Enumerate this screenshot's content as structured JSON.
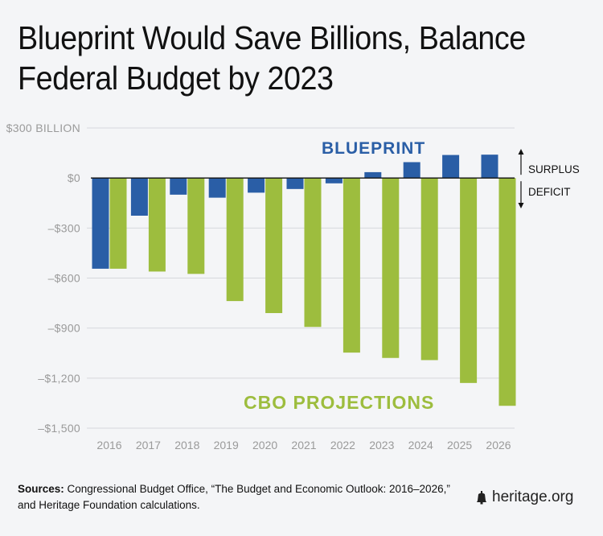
{
  "title_lines": [
    "Blueprint Would Save Billions, Balance",
    "Federal Budget by 2023"
  ],
  "colors": {
    "blueprint": "#2a5ea6",
    "cbo": "#9dbd3e",
    "axis_text": "#9a9a9a",
    "grid": "#d6d8dc",
    "zero": "#111111"
  },
  "chart_data": {
    "type": "bar",
    "categories": [
      "2016",
      "2017",
      "2018",
      "2019",
      "2020",
      "2021",
      "2022",
      "2023",
      "2024",
      "2025",
      "2026"
    ],
    "series": [
      {
        "name": "BLUEPRINT",
        "values": [
          -544,
          -226,
          -100,
          -118,
          -88,
          -66,
          -32,
          35,
          95,
          138,
          140
        ]
      },
      {
        "name": "CBO PROJECTIONS",
        "values": [
          -544,
          -561,
          -575,
          -738,
          -810,
          -893,
          -1047,
          -1079,
          -1092,
          -1229,
          -1366
        ]
      }
    ],
    "yticks": [
      300,
      0,
      -300,
      -600,
      -900,
      -1200,
      -1500
    ],
    "ytick_labels": [
      "$300 BILLION",
      "$0",
      "–$300",
      "–$600",
      "–$900",
      "–$1,200",
      "–$1,500"
    ],
    "ylim": [
      -1500,
      300
    ],
    "grid": true,
    "annotations": {
      "surplus": "SURPLUS",
      "deficit": "DEFICIT"
    }
  },
  "footer": {
    "sources_label": "Sources:",
    "sources_text": " Congressional Budget Office, “The Budget and Economic Outlook: 2016–2026,” and Heritage Foundation calculations."
  },
  "brand": {
    "text": "heritage.org",
    "icon": "liberty-bell-icon"
  }
}
